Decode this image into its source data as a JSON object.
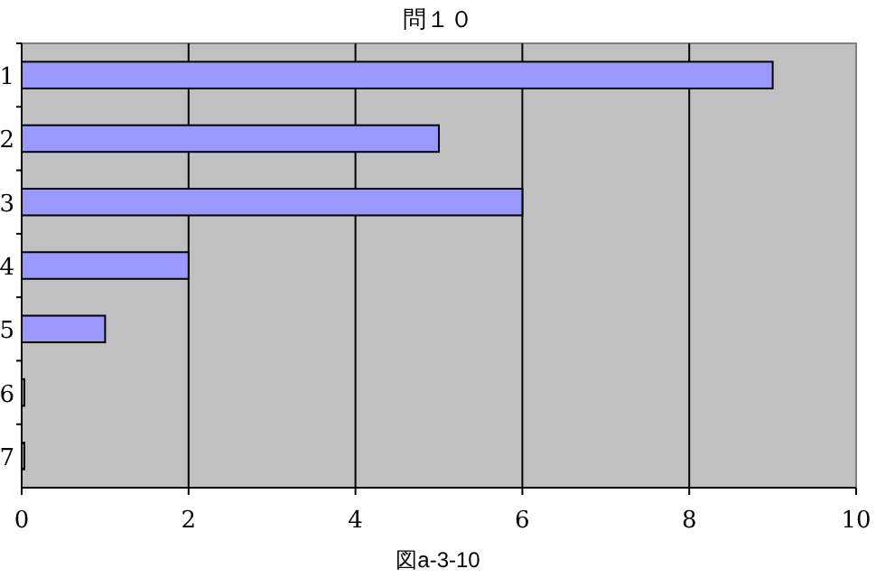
{
  "chart_data": {
    "type": "bar",
    "orientation": "horizontal",
    "title": "問１０",
    "annotations": [
      "図a-3-10"
    ],
    "categories": [
      "1",
      "2",
      "3",
      "4",
      "5",
      "6",
      "7"
    ],
    "values": [
      9,
      5,
      6,
      2,
      1,
      0,
      0
    ],
    "color": "#9999ff",
    "xlim": [
      0,
      10
    ],
    "xticks": [
      0,
      2,
      4,
      6,
      8,
      10
    ],
    "grid": "x"
  }
}
